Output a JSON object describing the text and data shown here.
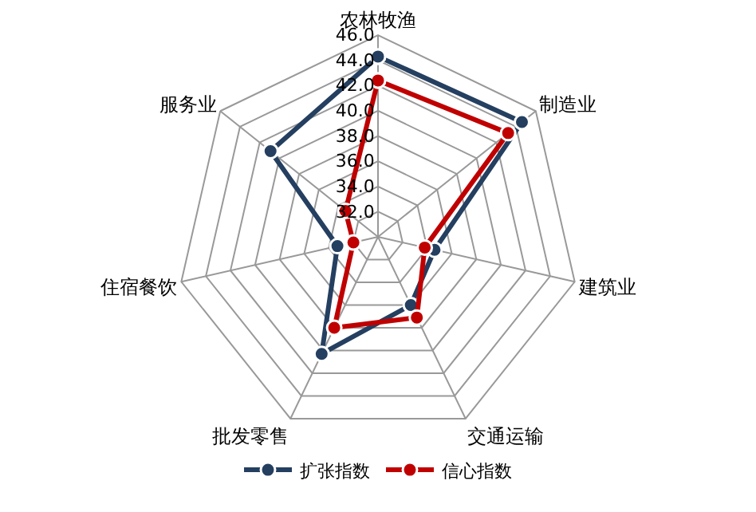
{
  "chart_data": {
    "type": "radar",
    "categories": [
      "农林牧渔",
      "制造业",
      "建筑业",
      "交通运输",
      "批发零售",
      "住宿餐饮",
      "服务业"
    ],
    "series": [
      {
        "name": "扩张指数",
        "color": "#243f60",
        "values": [
          44.3,
          44.6,
          34.6,
          36.0,
          40.3,
          33.3,
          40.9
        ]
      },
      {
        "name": "信心指数",
        "color": "#c00000",
        "values": [
          42.4,
          43.2,
          33.8,
          37.1,
          38.0,
          32.0,
          33.3
        ]
      }
    ],
    "ylim": [
      30,
      46
    ],
    "yticks": [
      {
        "value": 32,
        "label": "32.0"
      },
      {
        "value": 34,
        "label": "34.0"
      },
      {
        "value": 36,
        "label": "36.0"
      },
      {
        "value": 38,
        "label": "38.0"
      },
      {
        "value": 40,
        "label": "40.0"
      },
      {
        "value": 42,
        "label": "42.0"
      },
      {
        "value": 44,
        "label": "44.0"
      },
      {
        "value": 46,
        "label": "46.0"
      }
    ],
    "grid": true,
    "legend": "bottom",
    "marker": "circle",
    "line_style": "solid"
  }
}
